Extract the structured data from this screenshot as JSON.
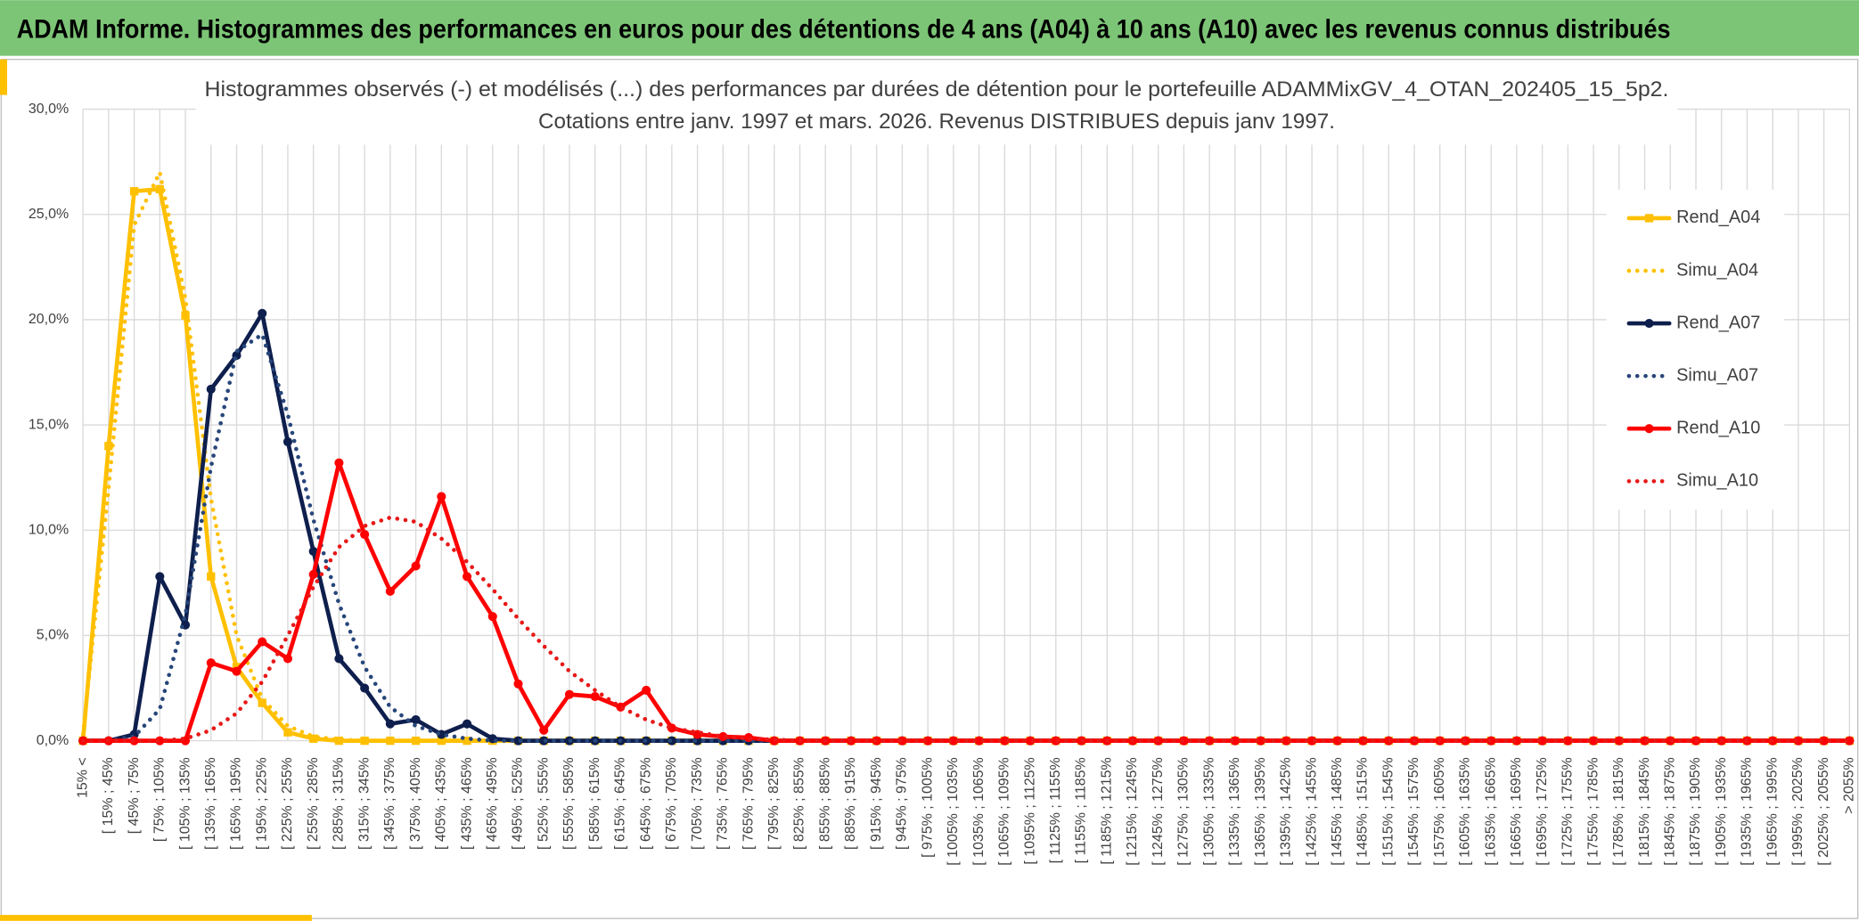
{
  "header": {
    "title": "ADAM Informe. Histogrammes des performances en euros pour des détentions de 4 ans (A04) à 10 ans (A10) avec les revenus connus distribués"
  },
  "chart_data": {
    "type": "line",
    "title": "Histogrammes observés (-) et modélisés (...) des performances par durées de détention pour le portefeuille ADAMMixGV_4_OTAN_202405_15_5p2.",
    "subtitle": "Cotations entre janv. 1997 et mars. 2026. Revenus DISTRIBUES depuis janv 1997.",
    "categories": [
      "15% <",
      "[ 15% ; 45%",
      "[ 45% ; 75%",
      "[ 75% ; 105%",
      "[ 105% ; 135%",
      "[ 135% ; 165%",
      "[ 165% ; 195%",
      "[ 195% ; 225%",
      "[ 225% ; 255%",
      "[ 255% ; 285%",
      "[ 285% ; 315%",
      "[ 315% ; 345%",
      "[ 345% ; 375%",
      "[ 375% ; 405%",
      "[ 405% ; 435%",
      "[ 435% ; 465%",
      "[ 465% ; 495%",
      "[ 495% ; 525%",
      "[ 525% ; 555%",
      "[ 555% ; 585%",
      "[ 585% ; 615%",
      "[ 615% ; 645%",
      "[ 645% ; 675%",
      "[ 675% ; 705%",
      "[ 705% ; 735%",
      "[ 735% ; 765%",
      "[ 765% ; 795%",
      "[ 795% ; 825%",
      "[ 825% ; 855%",
      "[ 855% ; 885%",
      "[ 885% ; 915%",
      "[ 915% ; 945%",
      "[ 945% ; 975%",
      "[ 975% ; 1005%",
      "[ 1005% ; 1035%",
      "[ 1035% ; 1065%",
      "[ 1065% ; 1095%",
      "[ 1095% ; 1125%",
      "[ 1125% ; 1155%",
      "[ 1155% ; 1185%",
      "[ 1185% ; 1215%",
      "[ 1215% ; 1245%",
      "[ 1245% ; 1275%",
      "[ 1275% ; 1305%",
      "[ 1305% ; 1335%",
      "[ 1335% ; 1365%",
      "[ 1365% ; 1395%",
      "[ 1395% ; 1425%",
      "[ 1425% ; 1455%",
      "[ 1455% ; 1485%",
      "[ 1485% ; 1515%",
      "[ 1515% ; 1545%",
      "[ 1545% ; 1575%",
      "[ 1575% ; 1605%",
      "[ 1605% ; 1635%",
      "[ 1635% ; 1665%",
      "[ 1665% ; 1695%",
      "[ 1695% ; 1725%",
      "[ 1725% ; 1755%",
      "[ 1755% ; 1785%",
      "[ 1785% ; 1815%",
      "[ 1815% ; 1845%",
      "[ 1845% ; 1875%",
      "[ 1875% ; 1905%",
      "[ 1905% ; 1935%",
      "[ 1935% ; 1965%",
      "[ 1965% ; 1995%",
      "[ 1995% ; 2025%",
      "[ 2025% ; 2055%",
      "> 2055%"
    ],
    "series": [
      {
        "name": "Rend_A04",
        "color": "#ffc000",
        "marker": "square",
        "dash": false,
        "values": [
          0,
          14.0,
          26.1,
          26.2,
          20.2,
          7.8,
          3.5,
          1.8,
          0.4,
          0.1,
          0,
          0,
          0,
          0,
          0,
          0,
          0,
          0,
          0,
          0,
          0,
          0,
          0,
          0,
          0,
          0,
          0,
          0,
          0,
          0,
          0,
          0,
          0,
          0,
          0,
          0,
          0,
          0,
          0,
          0,
          0,
          0,
          0,
          0,
          0,
          0,
          0,
          0,
          0,
          0,
          0,
          0,
          0,
          0,
          0,
          0,
          0,
          0,
          0,
          0,
          0,
          0,
          0,
          0,
          0,
          0,
          0,
          0,
          0,
          0
        ]
      },
      {
        "name": "Simu_A04",
        "color": "#ffc000",
        "marker": null,
        "dash": true,
        "values": [
          0.3,
          12,
          24.5,
          27.0,
          21,
          11.5,
          5,
          2,
          0.7,
          0.2,
          0.05,
          0,
          0,
          0,
          0,
          0,
          0,
          0,
          0,
          0,
          0,
          0,
          0,
          0,
          0,
          0,
          0,
          0,
          0,
          0,
          0,
          0,
          0,
          0,
          0,
          0,
          0,
          0,
          0,
          0,
          0,
          0,
          0,
          0,
          0,
          0,
          0,
          0,
          0,
          0,
          0,
          0,
          0,
          0,
          0,
          0,
          0,
          0,
          0,
          0,
          0,
          0,
          0,
          0,
          0,
          0,
          0,
          0,
          0,
          0
        ]
      },
      {
        "name": "Rend_A07",
        "color": "#0e1f4d",
        "marker": "circle",
        "dash": false,
        "values": [
          0,
          0,
          0.3,
          7.8,
          5.5,
          16.7,
          18.3,
          20.3,
          14.2,
          9,
          3.9,
          2.5,
          0.8,
          1.0,
          0.3,
          0.8,
          0.1,
          0,
          0,
          0,
          0,
          0,
          0,
          0,
          0,
          0,
          0,
          0,
          0,
          0,
          0,
          0,
          0,
          0,
          0,
          0,
          0,
          0,
          0,
          0,
          0,
          0,
          0,
          0,
          0,
          0,
          0,
          0,
          0,
          0,
          0,
          0,
          0,
          0,
          0,
          0,
          0,
          0,
          0,
          0,
          0,
          0,
          0,
          0,
          0,
          0,
          0,
          0,
          0,
          0
        ]
      },
      {
        "name": "Simu_A07",
        "color": "#27467a",
        "marker": null,
        "dash": true,
        "values": [
          0,
          0,
          0.2,
          1.5,
          6,
          13,
          18.5,
          19.3,
          15.5,
          10.5,
          6.5,
          3.5,
          1.6,
          0.7,
          0.3,
          0.1,
          0,
          0,
          0,
          0,
          0,
          0,
          0,
          0,
          0,
          0,
          0,
          0,
          0,
          0,
          0,
          0,
          0,
          0,
          0,
          0,
          0,
          0,
          0,
          0,
          0,
          0,
          0,
          0,
          0,
          0,
          0,
          0,
          0,
          0,
          0,
          0,
          0,
          0,
          0,
          0,
          0,
          0,
          0,
          0,
          0,
          0,
          0,
          0,
          0,
          0,
          0,
          0,
          0,
          0
        ]
      },
      {
        "name": "Rend_A10",
        "color": "#ff0000",
        "marker": "circle",
        "dash": false,
        "values": [
          0,
          0,
          0,
          0,
          0,
          3.7,
          3.3,
          4.7,
          3.9,
          7.9,
          13.2,
          9.8,
          7.1,
          8.3,
          11.6,
          7.8,
          5.9,
          2.7,
          0.5,
          2.2,
          2.1,
          1.6,
          2.4,
          0.6,
          0.3,
          0.2,
          0.15,
          0,
          0,
          0,
          0,
          0,
          0,
          0,
          0,
          0,
          0,
          0,
          0,
          0,
          0,
          0,
          0,
          0,
          0,
          0,
          0,
          0,
          0,
          0,
          0,
          0,
          0,
          0,
          0,
          0,
          0,
          0,
          0,
          0,
          0,
          0,
          0,
          0,
          0,
          0,
          0,
          0,
          0,
          0
        ]
      },
      {
        "name": "Simu_A10",
        "color": "#e81818",
        "marker": null,
        "dash": true,
        "values": [
          0,
          0,
          0,
          0,
          0.1,
          0.5,
          1.3,
          2.8,
          5,
          7.3,
          9.2,
          10.2,
          10.6,
          10.4,
          9.6,
          8.5,
          7.2,
          5.8,
          4.5,
          3.3,
          2.4,
          1.6,
          1.0,
          0.6,
          0.4,
          0.2,
          0.1,
          0.05,
          0,
          0,
          0,
          0,
          0,
          0,
          0,
          0,
          0,
          0,
          0,
          0,
          0,
          0,
          0,
          0,
          0,
          0,
          0,
          0,
          0,
          0,
          0,
          0,
          0,
          0,
          0,
          0,
          0,
          0,
          0,
          0,
          0,
          0,
          0,
          0,
          0,
          0,
          0,
          0,
          0,
          0
        ]
      }
    ],
    "ylim": [
      0,
      30
    ],
    "yticks": [
      {
        "value": 0,
        "label": "0,0%"
      },
      {
        "value": 5,
        "label": "5,0%"
      },
      {
        "value": 10,
        "label": "10,0%"
      },
      {
        "value": 15,
        "label": "15,0%"
      },
      {
        "value": 20,
        "label": "20,0%"
      },
      {
        "value": 25,
        "label": "25,0%"
      },
      {
        "value": 30,
        "label": "30,0%"
      }
    ],
    "grid": true,
    "legend": "right"
  }
}
